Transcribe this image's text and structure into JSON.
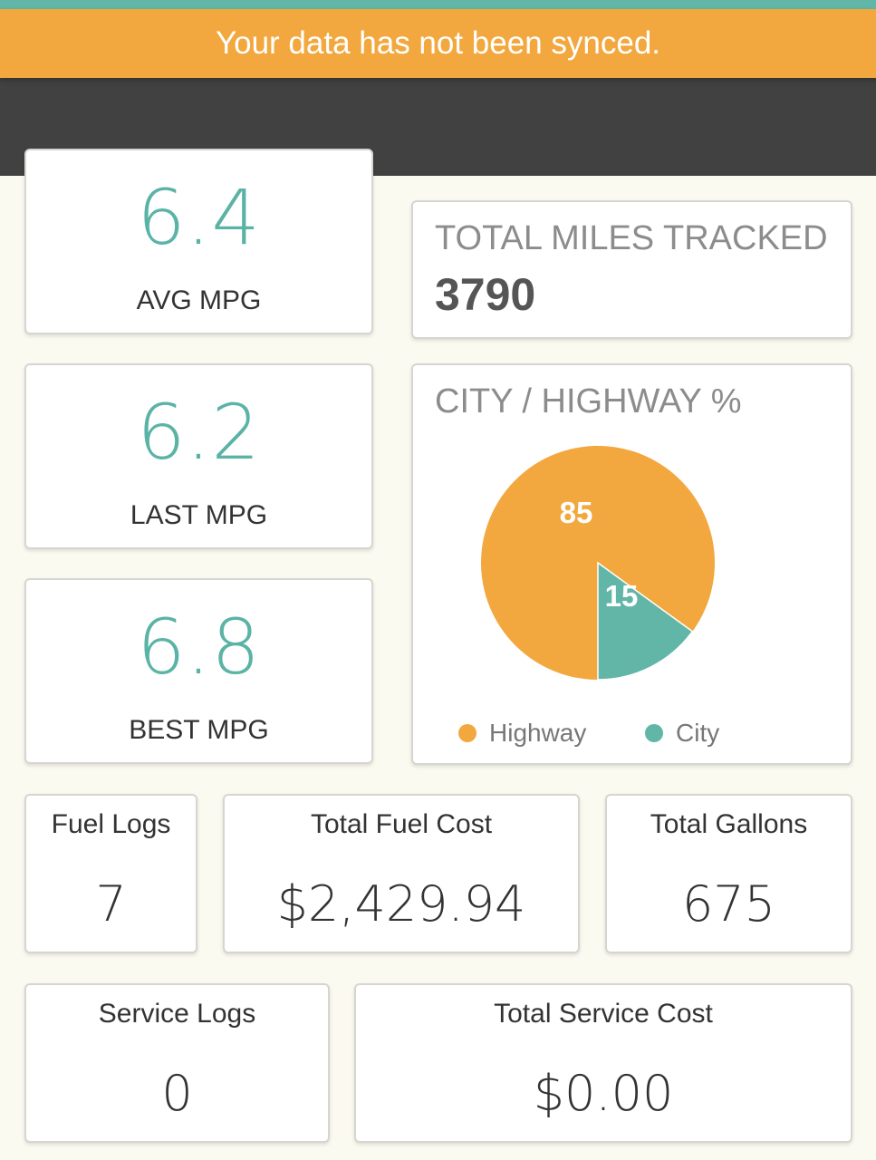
{
  "banner": {
    "message": "Your data has not been synced."
  },
  "mpg": {
    "avg": {
      "value": "6.4",
      "label": "AVG MPG"
    },
    "last": {
      "value": "6.2",
      "label": "LAST MPG"
    },
    "best": {
      "value": "6.8",
      "label": "BEST MPG"
    }
  },
  "miles": {
    "title": "TOTAL MILES TRACKED",
    "value": "3790"
  },
  "split": {
    "title": "CITY / HIGHWAY %",
    "colors": {
      "highway": "#f2a83e",
      "city": "#61b6a8"
    }
  },
  "stats": {
    "fuel_logs": {
      "label": "Fuel Logs",
      "value": "7"
    },
    "total_fuel_cost": {
      "label": "Total Fuel Cost",
      "value": "$2,429.94"
    },
    "total_gallons": {
      "label": "Total Gallons",
      "value": "675"
    },
    "service_logs": {
      "label": "Service Logs",
      "value": "0"
    },
    "total_service_cost": {
      "label": "Total Service Cost",
      "value": "$0.00"
    }
  },
  "chart_data": {
    "type": "pie",
    "categories": [
      "Highway",
      "City"
    ],
    "values": [
      85,
      15
    ],
    "title": "CITY / HIGHWAY %",
    "legend": "bottom"
  }
}
